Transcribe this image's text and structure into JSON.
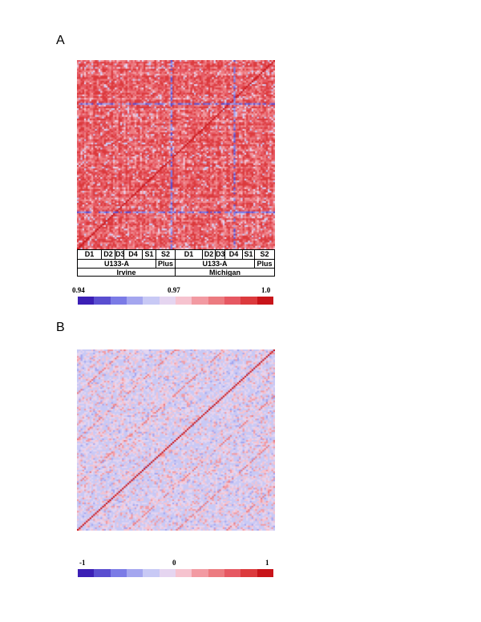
{
  "panel_a_label": "A",
  "panel_b_label": "B",
  "annotation": {
    "groups_row": [
      "D1",
      "D2",
      "D3",
      "D4",
      "S1",
      "S2",
      "D1",
      "D2",
      "D3",
      "D4",
      "S1",
      "S2"
    ],
    "platform_row": [
      "U133-A",
      "Plus",
      "U133-A",
      "Plus"
    ],
    "site_row": [
      "Irvine",
      "Michigan"
    ]
  },
  "chart_data": [
    {
      "type": "heatmap",
      "title": "",
      "xlabel": "",
      "ylabel": "",
      "colorbar": {
        "ticks": [
          "0.94",
          "0.97",
          "1.0"
        ],
        "range": [
          0.94,
          1.0
        ],
        "colors": [
          "#3b1fb5",
          "#5a4ed0",
          "#7b7be6",
          "#a4a6ef",
          "#c8c9f5",
          "#e5d5f0",
          "#f6c3cf",
          "#f29aa2",
          "#ec7b80",
          "#e65862",
          "#dc3a3d",
          "#c8141a"
        ]
      },
      "description_values": "pairwise correlation matrix, diagonal = 1.0, mostly 0.97-1.0 with blue bands near 0.94"
    },
    {
      "type": "heatmap",
      "title": "",
      "xlabel": "",
      "ylabel": "",
      "colorbar": {
        "ticks": [
          "-1",
          "0",
          "1"
        ],
        "range": [
          -1,
          1
        ],
        "colors": [
          "#3b1fb5",
          "#5a4ed0",
          "#7b7be6",
          "#a4a6ef",
          "#c8c9f5",
          "#e5d5f0",
          "#f6c3cf",
          "#f29aa2",
          "#ec7b80",
          "#e65862",
          "#dc3a3d",
          "#c8141a"
        ]
      }
    }
  ]
}
